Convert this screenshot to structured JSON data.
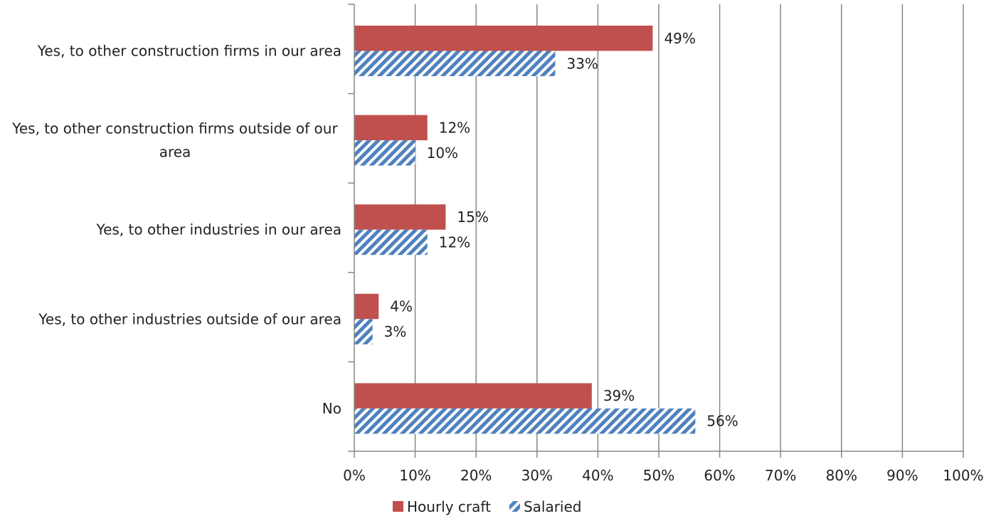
{
  "chart_data": {
    "type": "bar",
    "orientation": "horizontal",
    "categories": [
      "Yes, to other construction firms in our area",
      "Yes, to other construction firms outside of our area",
      "Yes, to other industries in our area",
      "Yes, to other industries outside of our area",
      "No"
    ],
    "series": [
      {
        "name": "Hourly craft",
        "values": [
          49,
          12,
          15,
          4,
          39
        ],
        "color": "#c0504d",
        "pattern": "solid"
      },
      {
        "name": "Salaried",
        "values": [
          33,
          10,
          12,
          3,
          56
        ],
        "color": "#4f81bd",
        "pattern": "diagonal-hatch"
      }
    ],
    "data_labels": [
      [
        "49%",
        "12%",
        "15%",
        "4%",
        "39%"
      ],
      [
        "33%",
        "10%",
        "12%",
        "3%",
        "56%"
      ]
    ],
    "x_ticks": [
      "0%",
      "10%",
      "20%",
      "30%",
      "40%",
      "50%",
      "60%",
      "70%",
      "80%",
      "90%",
      "100%"
    ],
    "xlim": [
      0,
      100
    ],
    "grid": "vertical",
    "legend_position": "bottom",
    "title": "",
    "xlabel": "",
    "ylabel": ""
  }
}
